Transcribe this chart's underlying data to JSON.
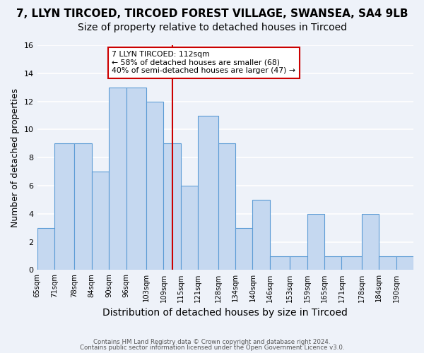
{
  "title1": "7, LLYN TIRCOED, TIRCOED FOREST VILLAGE, SWANSEA, SA4 9LB",
  "title2": "Size of property relative to detached houses in Tircoed",
  "xlabel": "Distribution of detached houses by size in Tircoed",
  "ylabel": "Number of detached properties",
  "bar_edges": [
    65,
    71,
    78,
    84,
    90,
    96,
    103,
    109,
    115,
    121,
    128,
    134,
    140,
    146,
    153,
    159,
    165,
    171,
    178,
    184,
    190,
    196
  ],
  "bar_heights": [
    3,
    9,
    9,
    7,
    13,
    13,
    12,
    9,
    6,
    11,
    9,
    3,
    5,
    1,
    1,
    4,
    1,
    1,
    4,
    1,
    1
  ],
  "bar_color": "#c5d8f0",
  "bar_edgecolor": "#5b9bd5",
  "property_line_x": 112,
  "property_line_color": "#cc0000",
  "annotation_text": "7 LLYN TIRCOED: 112sqm\n← 58% of detached houses are smaller (68)\n40% of semi-detached houses are larger (47) →",
  "annotation_box_edgecolor": "#cc0000",
  "annotation_box_facecolor": "#ffffff",
  "ylim": [
    0,
    16
  ],
  "yticks": [
    0,
    2,
    4,
    6,
    8,
    10,
    12,
    14,
    16
  ],
  "tick_labels": [
    "65sqm",
    "71sqm",
    "78sqm",
    "84sqm",
    "90sqm",
    "96sqm",
    "103sqm",
    "109sqm",
    "115sqm",
    "121sqm",
    "128sqm",
    "134sqm",
    "140sqm",
    "146sqm",
    "153sqm",
    "159sqm",
    "165sqm",
    "171sqm",
    "178sqm",
    "184sqm",
    "190sqm"
  ],
  "footnote1": "Contains HM Land Registry data © Crown copyright and database right 2024.",
  "footnote2": "Contains public sector information licensed under the Open Government Licence v3.0.",
  "background_color": "#eef2f9",
  "grid_color": "#ffffff",
  "title1_fontsize": 11,
  "title2_fontsize": 10,
  "xlabel_fontsize": 10,
  "ylabel_fontsize": 9
}
